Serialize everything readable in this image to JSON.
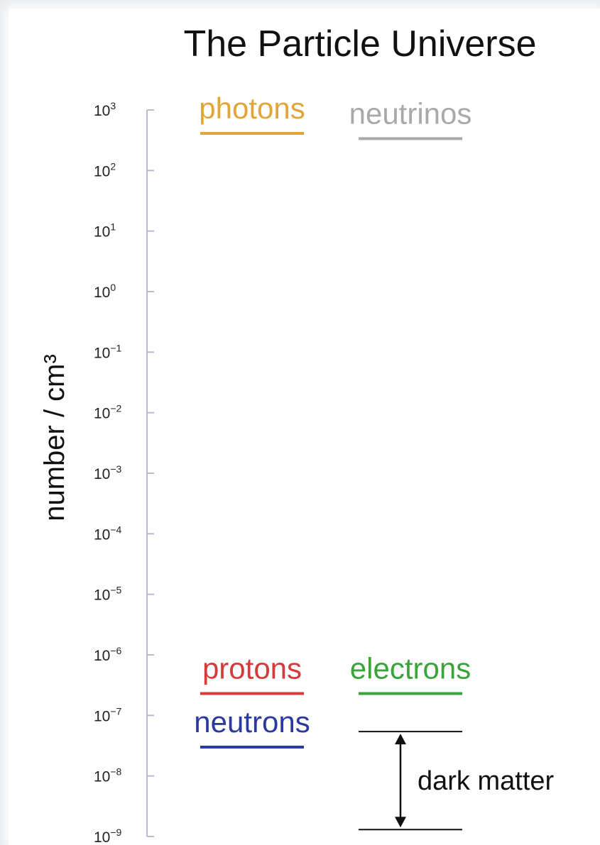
{
  "chart_data": {
    "type": "scatter",
    "title": "The Particle Universe",
    "ylabel": "number / cm³",
    "xlabel": "",
    "yscale": "log",
    "ylim": [
      1e-09,
      1000
    ],
    "yticks": [
      {
        "exp": 3,
        "label": "10",
        "sup": "3"
      },
      {
        "exp": 2,
        "label": "10",
        "sup": "2"
      },
      {
        "exp": 1,
        "label": "10",
        "sup": "1"
      },
      {
        "exp": 0,
        "label": "10",
        "sup": "0"
      },
      {
        "exp": -1,
        "label": "10",
        "sup": "−1"
      },
      {
        "exp": -2,
        "label": "10",
        "sup": "−2"
      },
      {
        "exp": -3,
        "label": "10",
        "sup": "−3"
      },
      {
        "exp": -4,
        "label": "10",
        "sup": "−4"
      },
      {
        "exp": -5,
        "label": "10",
        "sup": "−5"
      },
      {
        "exp": -6,
        "label": "10",
        "sup": "−6"
      },
      {
        "exp": -7,
        "label": "10",
        "sup": "−7"
      },
      {
        "exp": -8,
        "label": "10",
        "sup": "−8"
      },
      {
        "exp": -9,
        "label": "10",
        "sup": "−9"
      }
    ],
    "series": [
      {
        "name": "photons",
        "value": 411,
        "column": 0,
        "color": "#e0a63a"
      },
      {
        "name": "neutrinos",
        "value": 336,
        "column": 1,
        "color": "#a9a9a9"
      },
      {
        "name": "protons",
        "value": 2.3e-07,
        "column": 0,
        "color": "#d63a3a"
      },
      {
        "name": "electrons",
        "value": 2.3e-07,
        "column": 1,
        "color": "#3aa43a"
      },
      {
        "name": "neutrons",
        "value": 3e-08,
        "column": 0,
        "color": "#2b3aa0"
      }
    ],
    "range_annotation": {
      "name": "dark matter",
      "low": 1.3e-09,
      "high": 5.4e-08,
      "column": 1,
      "color": "#111111"
    },
    "axis_color": "#b9b9d8"
  }
}
